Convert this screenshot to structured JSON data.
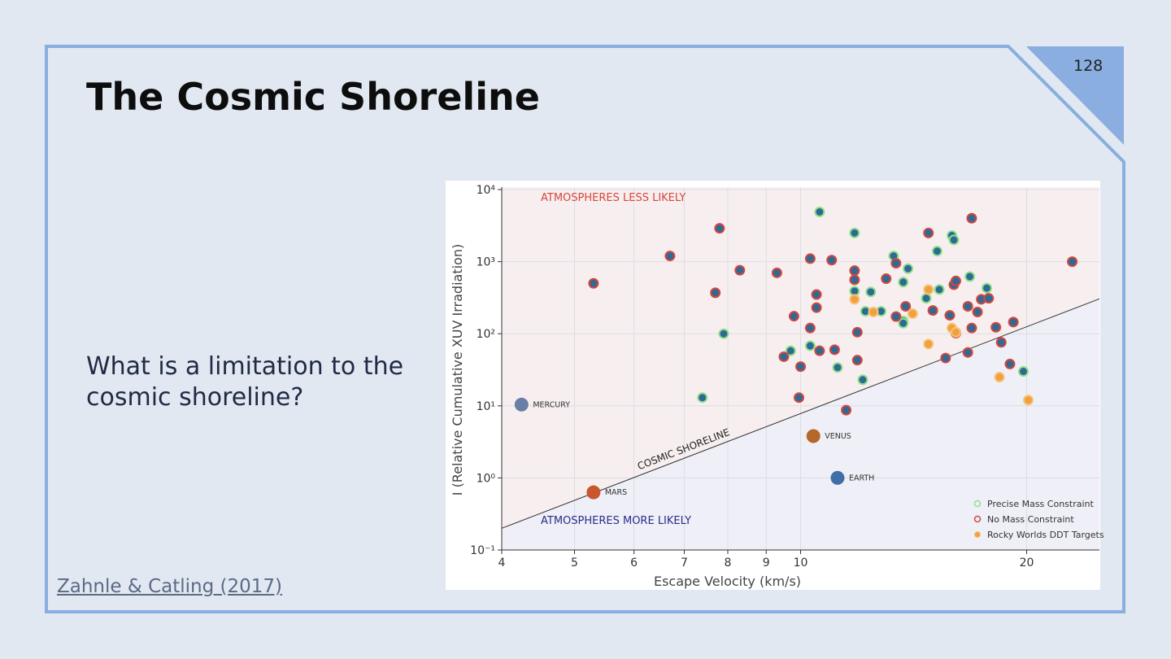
{
  "slide": {
    "page_number": "128",
    "title": "The Cosmic Shoreline",
    "question": "What is a limitation to the cosmic shoreline?",
    "citation": "Zahnle & Catling (2017)"
  },
  "chart_data": {
    "type": "scatter",
    "x_label": "Escape Velocity (km/s)",
    "y_label": "I (Relative Cumulative XUV Irradiation)",
    "xlim": [
      4,
      25
    ],
    "ylim": [
      0.1,
      10000
    ],
    "log_x": true,
    "log_y": true,
    "grid": true,
    "legend": "lower right",
    "xticks": [
      4,
      5,
      6,
      7,
      8,
      9,
      10,
      20
    ],
    "yticks": [
      {
        "value": 0.1,
        "label": "10⁻¹"
      },
      {
        "value": 1,
        "label": "10⁰"
      },
      {
        "value": 10,
        "label": "10¹"
      },
      {
        "value": 100,
        "label": "10²"
      },
      {
        "value": 1000,
        "label": "10³"
      },
      {
        "value": 10000,
        "label": "10⁴"
      }
    ],
    "series": [
      {
        "name": "Precise Mass Constraint",
        "color": "#8fe08a",
        "fill": "#2e6a94",
        "x": [
          10.6,
          11.8,
          7.9,
          7.4,
          9.7,
          10.3,
          11.2,
          11.8,
          12.1,
          12.2,
          12.4,
          12.8,
          13.3,
          13.9,
          13.7,
          13.7,
          13.7,
          14.7,
          15.2,
          15.3,
          15.9,
          16.0,
          16.8,
          17.7,
          19.8
        ],
        "values": [
          4900,
          2500,
          100,
          13,
          58,
          68,
          34,
          390,
          23,
          205,
          380,
          205,
          1200,
          800,
          520,
          150,
          140,
          310,
          1400,
          410,
          2300,
          2000,
          620,
          430,
          30
        ]
      },
      {
        "name": "No Mass Constraint",
        "color": "#d8453c",
        "fill": "#2e6a94",
        "x": [
          5.3,
          6.7,
          7.8,
          7.7,
          8.3,
          9.3,
          9.8,
          9.5,
          10.0,
          9.95,
          10.3,
          11.0,
          10.5,
          10.5,
          10.3,
          10.6,
          11.1,
          11.5,
          11.8,
          11.8,
          11.9,
          11.9,
          13.0,
          13.4,
          13.4,
          13.8,
          14.8,
          15.0,
          16.0,
          16.1,
          15.8,
          15.6,
          16.1,
          16.9,
          16.7,
          16.7,
          16.9,
          17.2,
          17.4,
          17.8,
          18.2,
          18.5,
          19.0,
          19.2,
          23.0
        ],
        "values": [
          500,
          1200,
          2900,
          370,
          760,
          700,
          175,
          48,
          35,
          13,
          1100,
          1050,
          350,
          230,
          120,
          58,
          60,
          8.7,
          560,
          750,
          105,
          43,
          580,
          950,
          173,
          240,
          2500,
          210,
          480,
          540,
          180,
          46,
          102,
          4000,
          240,
          55,
          120,
          200,
          300,
          310,
          123,
          76,
          38,
          145,
          1000
        ]
      },
      {
        "name": "Rocky Worlds DDT Targets",
        "color": "#f7c27a",
        "fill": "#f0a03c",
        "x": [
          11.8,
          12.5,
          14.1,
          14.8,
          14.8,
          15.9,
          16.1,
          18.4,
          20.1
        ],
        "values": [
          300,
          200,
          190,
          410,
          72,
          120,
          105,
          25,
          12
        ]
      }
    ],
    "planets": [
      {
        "name": "MERCURY",
        "x": 4.25,
        "y": 10.4,
        "color": "#6a7fa8"
      },
      {
        "name": "VENUS",
        "x": 10.4,
        "y": 3.8,
        "color": "#b5682a"
      },
      {
        "name": "EARTH",
        "x": 11.2,
        "y": 1.0,
        "color": "#3f6fa6"
      },
      {
        "name": "MARS",
        "x": 5.3,
        "y": 0.63,
        "color": "#c8572e"
      }
    ],
    "shoreline": {
      "label": "COSMIC SHORELINE",
      "x": [
        4,
        25
      ],
      "y": [
        0.2,
        305
      ]
    },
    "annotations": [
      {
        "text": "ATMOSPHERES LESS LIKELY",
        "color": "#d9453a"
      },
      {
        "text": "ATMOSPHERES MORE LIKELY",
        "color": "#2b2b8c"
      }
    ]
  }
}
